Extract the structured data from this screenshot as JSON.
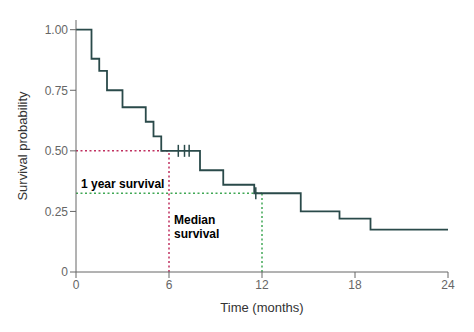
{
  "chart_data": {
    "type": "step",
    "title": "",
    "xlabel": "Time (months)",
    "ylabel": "Survival probability",
    "x": [
      0,
      1.0,
      1.5,
      2.0,
      3.0,
      4.5,
      5.0,
      5.5,
      6.5,
      7.5,
      8.0,
      9.5,
      11.5,
      12.5,
      14.5,
      17.0,
      19.0,
      21.5,
      24.0
    ],
    "values": [
      1.0,
      0.88,
      0.83,
      0.75,
      0.68,
      0.62,
      0.56,
      0.5,
      0.5,
      0.5,
      0.42,
      0.36,
      0.325,
      0.325,
      0.25,
      0.22,
      0.175,
      0.175,
      0.175
    ],
    "color": "#2a4a4a",
    "line_style": "step",
    "censored": {
      "x": [
        6.6,
        7.0,
        7.3,
        11.6
      ],
      "values": [
        0.5,
        0.5,
        0.5,
        0.325
      ],
      "marker": "|"
    },
    "median": {
      "x": 6.0,
      "y": 0.5,
      "color": "#c03060",
      "line_style": "dotted",
      "annotation": "Median\nsurvival"
    },
    "one_year": {
      "x": 12.0,
      "y": 0.325,
      "color": "#40a855",
      "line_style": "dotted",
      "annotation": "1 year survival"
    },
    "xlim": [
      0,
      24
    ],
    "ylim": [
      0,
      1.04
    ],
    "xticks": [
      0,
      6,
      12,
      18,
      24
    ],
    "yticks": [
      0,
      0.25,
      {
        "value": 0.5,
        "label": "0.50"
      },
      0.75,
      {
        "value": 1,
        "label": "1.00"
      }
    ],
    "grid": false
  }
}
